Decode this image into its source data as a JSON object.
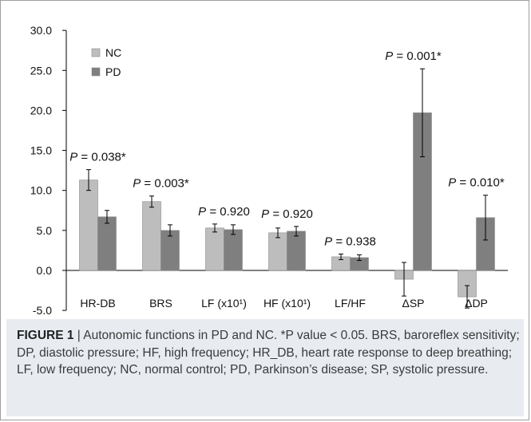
{
  "chart_data": {
    "type": "bar",
    "categories": [
      "HR-DB",
      "BRS",
      "LF (x10¹)",
      "HF  (x10¹)",
      "LF/HF",
      "ΔSP",
      "ΔDP"
    ],
    "series": [
      {
        "name": "NC",
        "color": "#bdbdbd",
        "values": [
          11.3,
          8.6,
          5.3,
          4.7,
          1.7,
          -1.1,
          -3.3
        ],
        "errors": [
          1.3,
          0.7,
          0.5,
          0.6,
          0.35,
          2.1,
          1.4
        ]
      },
      {
        "name": "PD",
        "color": "#7f7f7f",
        "values": [
          6.7,
          5.0,
          5.1,
          4.9,
          1.6,
          19.7,
          6.6
        ],
        "errors": [
          0.8,
          0.7,
          0.6,
          0.6,
          0.35,
          5.5,
          2.8
        ]
      }
    ],
    "ylim": [
      -5.0,
      30.0
    ],
    "yticks": [
      "-5.0",
      "0.0",
      "5.0",
      "10.0",
      "15.0",
      "20.0",
      "25.0",
      "30.0"
    ],
    "yticks_values": [
      -5,
      0,
      5,
      10,
      15,
      20,
      25,
      30
    ],
    "annotations": [
      {
        "p": "P",
        "text": " = 0.038*"
      },
      {
        "p": "P",
        "text": " = 0.003*"
      },
      {
        "p": "P",
        "text": " = 0.920"
      },
      {
        "p": "P",
        "text": " = 0.920"
      },
      {
        "p": "P",
        "text": " = 0.938"
      },
      {
        "p": "P",
        "text": " = 0.001*"
      },
      {
        "p": "P",
        "text": " = 0.010*"
      }
    ],
    "legend_position": "top-left",
    "grid": false
  },
  "caption": {
    "figure_label": "FIGURE 1",
    "text": " | Autonomic functions in PD and NC. *P value < 0.05. BRS, baroreflex sensitivity; DP, diastolic pressure; HF, high frequency; HR_DB, heart rate response to deep breathing; LF, low frequency; NC, normal control; PD, Parkinson’s disease; SP, systolic pressure."
  },
  "colors": {
    "axis": "#000000",
    "caption_bg": "#e8ecf1"
  }
}
